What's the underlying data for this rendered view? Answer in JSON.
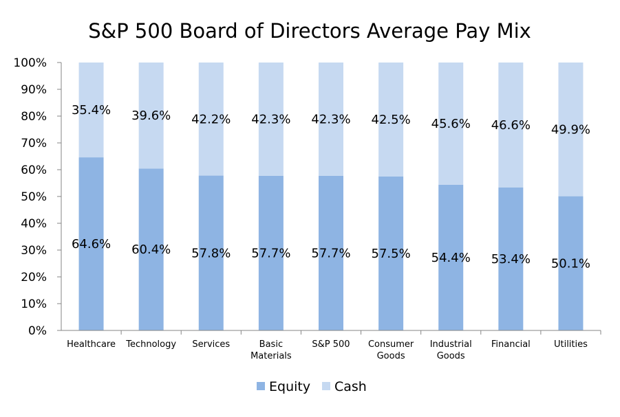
{
  "colors": {
    "equity": "#8eb4e3",
    "cash": "#c6d9f1",
    "axis": "#868686"
  },
  "chart_data": {
    "type": "bar",
    "stacked": true,
    "title": "S&P 500 Board of Directors Average Pay Mix",
    "xlabel": "",
    "ylabel": "",
    "ylim": [
      0,
      100
    ],
    "yticks": [
      "0%",
      "10%",
      "20%",
      "30%",
      "40%",
      "50%",
      "60%",
      "70%",
      "80%",
      "90%",
      "100%"
    ],
    "grid": false,
    "legend_position": "bottom",
    "categories": [
      [
        "Healthcare"
      ],
      [
        "Technology"
      ],
      [
        "Services"
      ],
      [
        "Basic",
        "Materials"
      ],
      [
        "S&P 500"
      ],
      [
        "Consumer",
        "Goods"
      ],
      [
        "Industrial",
        "Goods"
      ],
      [
        "Financial"
      ],
      [
        "Utilities"
      ]
    ],
    "series": [
      {
        "name": "Equity",
        "values": [
          64.6,
          60.4,
          57.8,
          57.7,
          57.7,
          57.5,
          54.4,
          53.4,
          50.1
        ],
        "labels": [
          "64.6%",
          "60.4%",
          "57.8%",
          "57.7%",
          "57.7%",
          "57.5%",
          "54.4%",
          "53.4%",
          "50.1%"
        ]
      },
      {
        "name": "Cash",
        "values": [
          35.4,
          39.6,
          42.2,
          42.3,
          42.3,
          42.5,
          45.6,
          46.6,
          49.9
        ],
        "labels": [
          "35.4%",
          "39.6%",
          "42.2%",
          "42.3%",
          "42.3%",
          "42.5%",
          "45.6%",
          "46.6%",
          "49.9%"
        ]
      }
    ]
  }
}
